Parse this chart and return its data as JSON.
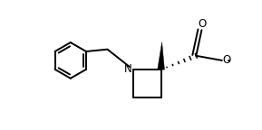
{
  "background": "#ffffff",
  "line_color": "#000000",
  "lw": 1.4,
  "fig_width": 2.89,
  "fig_height": 1.44,
  "dpi": 100,
  "xlim": [
    -1.1,
    1.05
  ],
  "ylim": [
    -0.65,
    0.75
  ]
}
